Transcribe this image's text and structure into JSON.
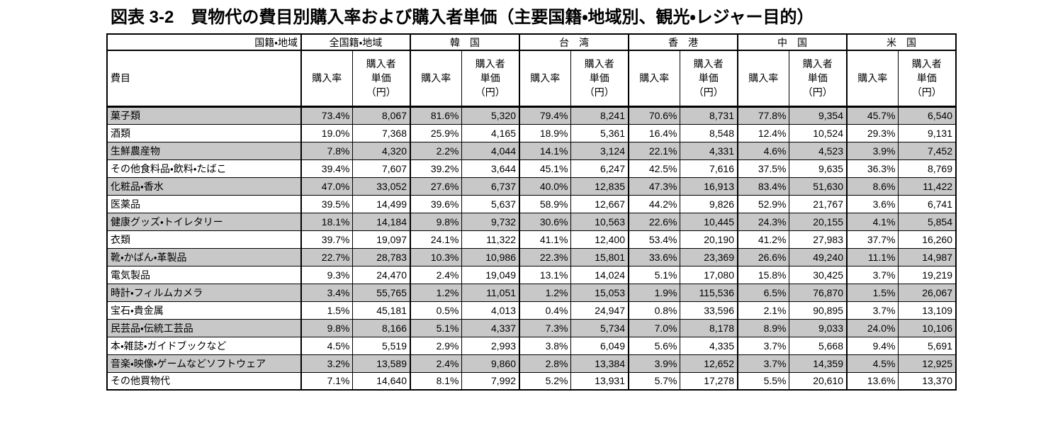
{
  "title": "図表 3-2　買物代の費目別購入率および購入者単価（主要国籍・地域別、観光・レジャー目的）",
  "colors": {
    "shaded_row": "#c8c8c8",
    "border": "#000000",
    "text": "#000000",
    "background": "#ffffff"
  },
  "table": {
    "corner_top_label": "国籍・地域",
    "corner_bottom_label": "費目",
    "groups": [
      "全国籍・地域",
      "韓　国",
      "台　湾",
      "香　港",
      "中　国",
      "米　国"
    ],
    "sub_headers": {
      "rate": "購入率",
      "unit_price": "購入者\n単価\n（円）"
    },
    "rows": [
      {
        "label": "菓子類",
        "shaded": true,
        "values": [
          "73.4%",
          "8,067",
          "81.6%",
          "5,320",
          "79.4%",
          "8,241",
          "70.6%",
          "8,731",
          "77.8%",
          "9,354",
          "45.7%",
          "6,540"
        ]
      },
      {
        "label": "酒類",
        "shaded": false,
        "values": [
          "19.0%",
          "7,368",
          "25.9%",
          "4,165",
          "18.9%",
          "5,361",
          "16.4%",
          "8,548",
          "12.4%",
          "10,524",
          "29.3%",
          "9,131"
        ]
      },
      {
        "label": "生鮮農産物",
        "shaded": true,
        "values": [
          "7.8%",
          "4,320",
          "2.2%",
          "4,044",
          "14.1%",
          "3,124",
          "22.1%",
          "4,331",
          "4.6%",
          "4,523",
          "3.9%",
          "7,452"
        ]
      },
      {
        "label": "その他食料品・飲料・たばこ",
        "shaded": false,
        "values": [
          "39.4%",
          "7,607",
          "39.2%",
          "3,644",
          "45.1%",
          "6,247",
          "42.5%",
          "7,616",
          "37.5%",
          "9,635",
          "36.3%",
          "8,769"
        ]
      },
      {
        "label": "化粧品・香水",
        "shaded": true,
        "values": [
          "47.0%",
          "33,052",
          "27.6%",
          "6,737",
          "40.0%",
          "12,835",
          "47.3%",
          "16,913",
          "83.4%",
          "51,630",
          "8.6%",
          "11,422"
        ]
      },
      {
        "label": "医薬品",
        "shaded": false,
        "values": [
          "39.5%",
          "14,499",
          "39.6%",
          "5,637",
          "58.9%",
          "12,667",
          "44.2%",
          "9,826",
          "52.9%",
          "21,767",
          "3.6%",
          "6,741"
        ]
      },
      {
        "label": "健康グッズ・トイレタリー",
        "shaded": true,
        "values": [
          "18.1%",
          "14,184",
          "9.8%",
          "9,732",
          "30.6%",
          "10,563",
          "22.6%",
          "10,445",
          "24.3%",
          "20,155",
          "4.1%",
          "5,854"
        ]
      },
      {
        "label": "衣類",
        "shaded": false,
        "values": [
          "39.7%",
          "19,097",
          "24.1%",
          "11,322",
          "41.1%",
          "12,400",
          "53.4%",
          "20,190",
          "41.2%",
          "27,983",
          "37.7%",
          "16,260"
        ]
      },
      {
        "label": "靴・かばん・革製品",
        "shaded": true,
        "values": [
          "22.7%",
          "28,783",
          "10.3%",
          "10,986",
          "22.3%",
          "15,801",
          "33.6%",
          "23,369",
          "26.6%",
          "49,240",
          "11.1%",
          "14,987"
        ]
      },
      {
        "label": "電気製品",
        "shaded": false,
        "values": [
          "9.3%",
          "24,470",
          "2.4%",
          "19,049",
          "13.1%",
          "14,024",
          "5.1%",
          "17,080",
          "15.8%",
          "30,425",
          "3.7%",
          "19,219"
        ]
      },
      {
        "label": "時計・フィルムカメラ",
        "shaded": true,
        "values": [
          "3.4%",
          "55,765",
          "1.2%",
          "11,051",
          "1.2%",
          "15,053",
          "1.9%",
          "115,536",
          "6.5%",
          "76,870",
          "1.5%",
          "26,067"
        ]
      },
      {
        "label": "宝石・貴金属",
        "shaded": false,
        "values": [
          "1.5%",
          "45,181",
          "0.5%",
          "4,013",
          "0.4%",
          "24,947",
          "0.8%",
          "33,596",
          "2.1%",
          "90,895",
          "3.7%",
          "13,109"
        ]
      },
      {
        "label": "民芸品・伝統工芸品",
        "shaded": true,
        "values": [
          "9.8%",
          "8,166",
          "5.1%",
          "4,337",
          "7.3%",
          "5,734",
          "7.0%",
          "8,178",
          "8.9%",
          "9,033",
          "24.0%",
          "10,106"
        ]
      },
      {
        "label": "本・雑誌・ガイドブックなど",
        "shaded": false,
        "values": [
          "4.5%",
          "5,519",
          "2.9%",
          "2,993",
          "3.8%",
          "6,049",
          "5.6%",
          "4,335",
          "3.7%",
          "5,668",
          "9.4%",
          "5,691"
        ]
      },
      {
        "label": "音楽・映像・ゲームなどソフトウェア",
        "shaded": true,
        "values": [
          "3.2%",
          "13,589",
          "2.4%",
          "9,860",
          "2.8%",
          "13,384",
          "3.9%",
          "12,652",
          "3.7%",
          "14,359",
          "4.5%",
          "12,925"
        ]
      },
      {
        "label": "その他買物代",
        "shaded": false,
        "values": [
          "7.1%",
          "14,640",
          "8.1%",
          "7,992",
          "5.2%",
          "13,931",
          "5.7%",
          "17,278",
          "5.5%",
          "20,610",
          "13.6%",
          "13,370"
        ]
      }
    ]
  }
}
